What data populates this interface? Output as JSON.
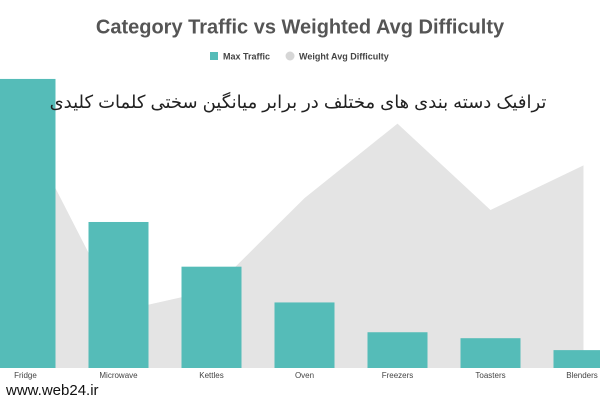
{
  "chart_data": {
    "type": "bar",
    "title": "Category Traffic vs Weighted Avg Difficulty",
    "categories": [
      "Fridge",
      "Microwave",
      "Kettles",
      "Oven",
      "Freezers",
      "Toasters",
      "Blenders"
    ],
    "series": [
      {
        "name": "Max Traffic",
        "type": "bar",
        "color": "#55bcb8",
        "values": [
          97,
          49,
          34,
          22,
          12,
          10,
          6
        ]
      },
      {
        "name": "Weight Avg Difficulty",
        "type": "area",
        "color": "#e4e4e4",
        "values": [
          80,
          19,
          26,
          57,
          82,
          53,
          68
        ]
      }
    ],
    "ylim": [
      0,
      100
    ],
    "annotations": [
      "ترافیک دسته بندی های مختلف در برابر میانگین سختی کلمات کلیدی",
      "www.web24.ir"
    ]
  }
}
